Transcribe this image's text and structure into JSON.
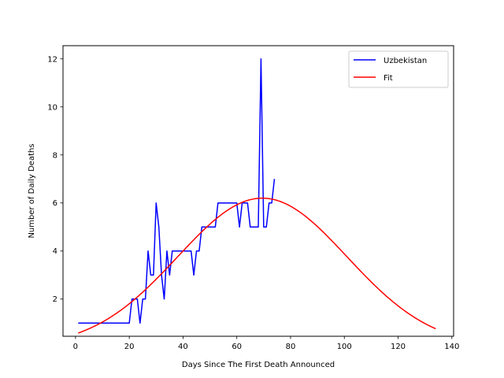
{
  "chart_data": {
    "type": "line",
    "title": "",
    "xlabel": "Days Since The First Death Announced",
    "ylabel": "Number of Daily Deaths",
    "xlim": [
      -4.65,
      140.65
    ],
    "ylim": [
      0.45,
      12.55
    ],
    "xticks": [
      0,
      20,
      40,
      60,
      80,
      100,
      120,
      140
    ],
    "yticks": [
      2,
      4,
      6,
      8,
      10,
      12
    ],
    "grid": false,
    "legend_position": "top-right",
    "series": [
      {
        "name": "Uzbekistan",
        "color": "#0000ff",
        "x": [
          1,
          2,
          3,
          4,
          5,
          6,
          7,
          8,
          9,
          10,
          11,
          12,
          13,
          14,
          15,
          16,
          17,
          18,
          19,
          20,
          21,
          22,
          23,
          24,
          25,
          26,
          27,
          28,
          29,
          30,
          31,
          32,
          33,
          34,
          35,
          36,
          37,
          38,
          39,
          40,
          41,
          42,
          43,
          44,
          45,
          46,
          47,
          48,
          49,
          50,
          51,
          52,
          53,
          54,
          55,
          56,
          57,
          58,
          59,
          60,
          61,
          62,
          63,
          64,
          65,
          66,
          67,
          68,
          69,
          70,
          71,
          72,
          73,
          74
        ],
        "y": [
          1,
          1,
          1,
          1,
          1,
          1,
          1,
          1,
          1,
          1,
          1,
          1,
          1,
          1,
          1,
          1,
          1,
          1,
          1,
          1,
          2,
          2,
          2,
          1,
          2,
          2,
          4,
          3,
          3,
          6,
          5,
          3,
          2,
          4,
          3,
          4,
          4,
          4,
          4,
          4,
          4,
          4,
          4,
          3,
          4,
          4,
          5,
          5,
          5,
          5,
          5,
          5,
          6,
          6,
          6,
          6,
          6,
          6,
          6,
          6,
          5,
          6,
          6,
          6,
          5,
          5,
          5,
          5,
          12,
          5,
          5,
          6,
          6,
          7
        ]
      },
      {
        "name": "Fit",
        "color": "#ff0000",
        "model": "gaussian",
        "amplitude": 6.2,
        "center": 69.5,
        "sigma": 31.5,
        "x_start": 1,
        "x_end": 134
      }
    ]
  }
}
